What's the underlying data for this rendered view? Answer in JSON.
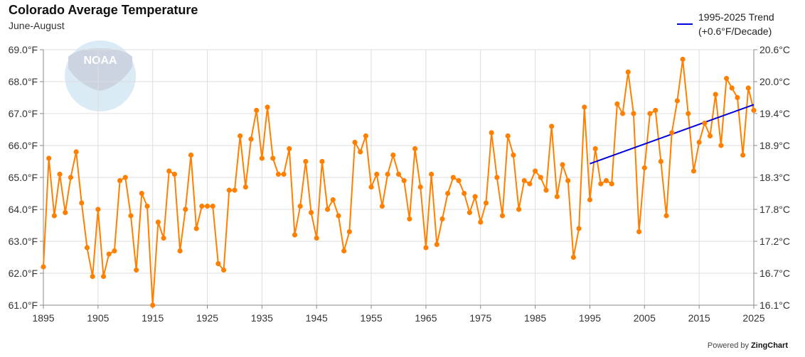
{
  "chart_data": {
    "type": "line",
    "title": "Colorado Average Temperature",
    "subtitle": "June-August",
    "x_ticks": [
      "1895",
      "1905",
      "1915",
      "1925",
      "1935",
      "1945",
      "1955",
      "1965",
      "1975",
      "1985",
      "1995",
      "2005",
      "2015",
      "2025"
    ],
    "y_ticks_left": [
      "61.0°F",
      "62.0°F",
      "63.0°F",
      "64.0°F",
      "65.0°F",
      "66.0°F",
      "67.0°F",
      "68.0°F",
      "69.0°F"
    ],
    "y_ticks_right": [
      "16.1°C",
      "16.7°C",
      "17.2°C",
      "17.8°C",
      "18.3°C",
      "18.9°C",
      "19.4°C",
      "20.0°C",
      "20.6°C"
    ],
    "xlim": [
      1895,
      2025
    ],
    "ylim": [
      61,
      69
    ],
    "grid": true,
    "series": [
      {
        "color": "#ff8000",
        "x": [
          1895,
          1896,
          1897,
          1898,
          1899,
          1900,
          1901,
          1902,
          1903,
          1904,
          1905,
          1906,
          1907,
          1908,
          1909,
          1910,
          1911,
          1912,
          1913,
          1914,
          1915,
          1916,
          1917,
          1918,
          1919,
          1920,
          1921,
          1922,
          1923,
          1924,
          1925,
          1926,
          1927,
          1928,
          1929,
          1930,
          1931,
          1932,
          1933,
          1934,
          1935,
          1936,
          1937,
          1938,
          1939,
          1940,
          1941,
          1942,
          1943,
          1944,
          1945,
          1946,
          1947,
          1948,
          1949,
          1950,
          1951,
          1952,
          1953,
          1954,
          1955,
          1956,
          1957,
          1958,
          1959,
          1960,
          1961,
          1962,
          1963,
          1964,
          1965,
          1966,
          1967,
          1968,
          1969,
          1970,
          1971,
          1972,
          1973,
          1974,
          1975,
          1976,
          1977,
          1978,
          1979,
          1980,
          1981,
          1982,
          1983,
          1984,
          1985,
          1986,
          1987,
          1988,
          1989,
          1990,
          1991,
          1992,
          1993,
          1994,
          1995,
          1996,
          1997,
          1998,
          1999,
          2000,
          2001,
          2002,
          2003,
          2004,
          2005,
          2006,
          2007,
          2008,
          2009,
          2010,
          2011,
          2012,
          2013,
          2014,
          2015,
          2016,
          2017,
          2018,
          2019,
          2020,
          2021,
          2022,
          2023,
          2024,
          2025
        ],
        "values": [
          62.2,
          65.6,
          63.8,
          65.1,
          63.9,
          65.0,
          65.8,
          64.2,
          62.8,
          61.9,
          64.0,
          61.9,
          62.6,
          62.7,
          64.9,
          65.0,
          63.8,
          62.1,
          64.5,
          64.1,
          61.0,
          63.6,
          63.1,
          65.2,
          65.1,
          62.7,
          64.0,
          65.7,
          63.4,
          64.1,
          64.1,
          64.1,
          62.3,
          62.1,
          64.6,
          64.6,
          66.3,
          64.7,
          66.2,
          67.1,
          65.6,
          67.2,
          65.6,
          65.1,
          65.1,
          65.9,
          63.2,
          64.1,
          65.5,
          63.9,
          63.1,
          65.5,
          64.0,
          64.3,
          63.8,
          62.7,
          63.3,
          66.1,
          65.8,
          66.3,
          64.7,
          65.1,
          64.1,
          65.1,
          65.7,
          65.1,
          64.9,
          63.7,
          65.9,
          64.7,
          62.8,
          65.1,
          62.9,
          63.7,
          64.5,
          65.0,
          64.9,
          64.5,
          63.9,
          64.4,
          63.6,
          64.2,
          66.4,
          65.0,
          63.8,
          66.3,
          65.7,
          64.0,
          64.9,
          64.8,
          65.2,
          65.0,
          64.6,
          66.6,
          64.4,
          65.4,
          64.9,
          62.5,
          63.4,
          67.2,
          64.3,
          65.9,
          64.8,
          64.9,
          64.8,
          67.3,
          67.0,
          68.3,
          67.0,
          63.3,
          65.3,
          67.0,
          67.1,
          65.5,
          63.8,
          66.4,
          67.4,
          68.7,
          67.0,
          65.2,
          66.1,
          66.7,
          66.3,
          67.6,
          66.0,
          68.1,
          67.8,
          67.5,
          65.7,
          67.8,
          67.1
        ]
      },
      {
        "name": "1995-2025 Trend\n(+0.6°F/Decade)",
        "color": "#0000dd",
        "x": [
          1995,
          2025
        ],
        "values": [
          65.43,
          67.28
        ]
      }
    ]
  },
  "credit": {
    "prefix": "Powered by",
    "brand": "ZingChart"
  },
  "watermark": {
    "text": "NOAA"
  }
}
